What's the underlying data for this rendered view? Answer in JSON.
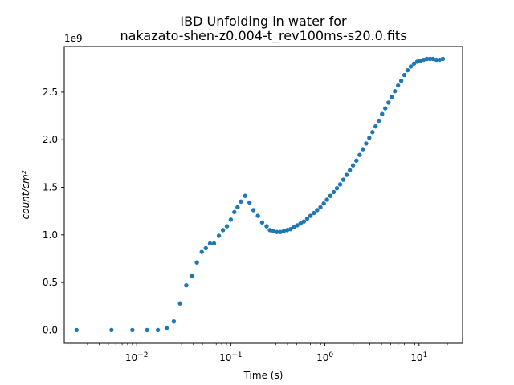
{
  "chart_data": {
    "type": "scatter",
    "title_line1": "IBD Unfolding in water for",
    "title_line2": "nakazato-shen-z0.004-t_rev100ms-s20.0.fits",
    "xlabel": "Time (s)",
    "ylabel": "count/cm²",
    "y_offset_label": "1e9",
    "x_scale": "log",
    "xlim": [
      0.0017,
      29
    ],
    "ylim": [
      -0.14,
      2.98
    ],
    "x_ticks": [
      {
        "value": 0.01,
        "base": "10",
        "exp": "−2"
      },
      {
        "value": 0.1,
        "base": "10",
        "exp": "−1"
      },
      {
        "value": 1,
        "base": "10",
        "exp": "0"
      },
      {
        "value": 10,
        "base": "10",
        "exp": "1"
      }
    ],
    "y_ticks": [
      {
        "value": 0.0,
        "label": "0.0"
      },
      {
        "value": 0.5,
        "label": "0.5"
      },
      {
        "value": 1.0,
        "label": "1.0"
      },
      {
        "value": 1.5,
        "label": "1.5"
      },
      {
        "value": 2.0,
        "label": "2.0"
      },
      {
        "value": 2.5,
        "label": "2.5"
      }
    ],
    "grid": false,
    "marker_color": "#1f77b4",
    "series": [
      {
        "points": [
          [
            0.0023,
            0.0
          ],
          [
            0.0054,
            0.0
          ],
          [
            0.009,
            0.0
          ],
          [
            0.0129,
            0.0
          ],
          [
            0.0168,
            0.0
          ],
          [
            0.0208,
            0.02
          ],
          [
            0.0248,
            0.09
          ],
          [
            0.0289,
            0.28
          ],
          [
            0.0336,
            0.47
          ],
          [
            0.0386,
            0.57
          ],
          [
            0.0436,
            0.71
          ],
          [
            0.0491,
            0.82
          ],
          [
            0.0543,
            0.86
          ],
          [
            0.0601,
            0.91
          ],
          [
            0.0663,
            0.91
          ],
          [
            0.0747,
            0.99
          ],
          [
            0.0826,
            1.05
          ],
          [
            0.091,
            1.09
          ],
          [
            0.1,
            1.16
          ],
          [
            0.109,
            1.24
          ],
          [
            0.118,
            1.29
          ],
          [
            0.128,
            1.35
          ],
          [
            0.142,
            1.41
          ],
          [
            0.158,
            1.34
          ],
          [
            0.174,
            1.26
          ],
          [
            0.194,
            1.2
          ],
          [
            0.215,
            1.13
          ],
          [
            0.24,
            1.09
          ],
          [
            0.26,
            1.05
          ],
          [
            0.283,
            1.04
          ],
          [
            0.309,
            1.03
          ],
          [
            0.336,
            1.03
          ],
          [
            0.366,
            1.04
          ],
          [
            0.397,
            1.05
          ],
          [
            0.431,
            1.06
          ],
          [
            0.467,
            1.08
          ],
          [
            0.507,
            1.1
          ],
          [
            0.551,
            1.12
          ],
          [
            0.597,
            1.14
          ],
          [
            0.648,
            1.17
          ],
          [
            0.703,
            1.2
          ],
          [
            0.762,
            1.23
          ],
          [
            0.826,
            1.26
          ],
          [
            0.896,
            1.29
          ],
          [
            0.971,
            1.33
          ],
          [
            1.05,
            1.37
          ],
          [
            1.14,
            1.41
          ],
          [
            1.24,
            1.45
          ],
          [
            1.34,
            1.49
          ],
          [
            1.45,
            1.53
          ],
          [
            1.57,
            1.58
          ],
          [
            1.7,
            1.63
          ],
          [
            1.84,
            1.68
          ],
          [
            1.99,
            1.73
          ],
          [
            2.16,
            1.78
          ],
          [
            2.34,
            1.84
          ],
          [
            2.53,
            1.9
          ],
          [
            2.74,
            1.96
          ],
          [
            2.96,
            2.02
          ],
          [
            3.2,
            2.08
          ],
          [
            3.46,
            2.14
          ],
          [
            3.75,
            2.2
          ],
          [
            4.05,
            2.27
          ],
          [
            4.38,
            2.33
          ],
          [
            4.74,
            2.39
          ],
          [
            5.12,
            2.45
          ],
          [
            5.54,
            2.51
          ],
          [
            5.98,
            2.57
          ],
          [
            6.47,
            2.62
          ],
          [
            6.99,
            2.68
          ],
          [
            7.56,
            2.73
          ],
          [
            8.17,
            2.77
          ],
          [
            8.83,
            2.8
          ],
          [
            9.55,
            2.82
          ],
          [
            10.3,
            2.83
          ],
          [
            11.2,
            2.84
          ],
          [
            12.1,
            2.85
          ],
          [
            13.1,
            2.85
          ],
          [
            14.1,
            2.85
          ],
          [
            15.3,
            2.84
          ],
          [
            16.5,
            2.84
          ],
          [
            17.9,
            2.85
          ]
        ]
      }
    ]
  }
}
